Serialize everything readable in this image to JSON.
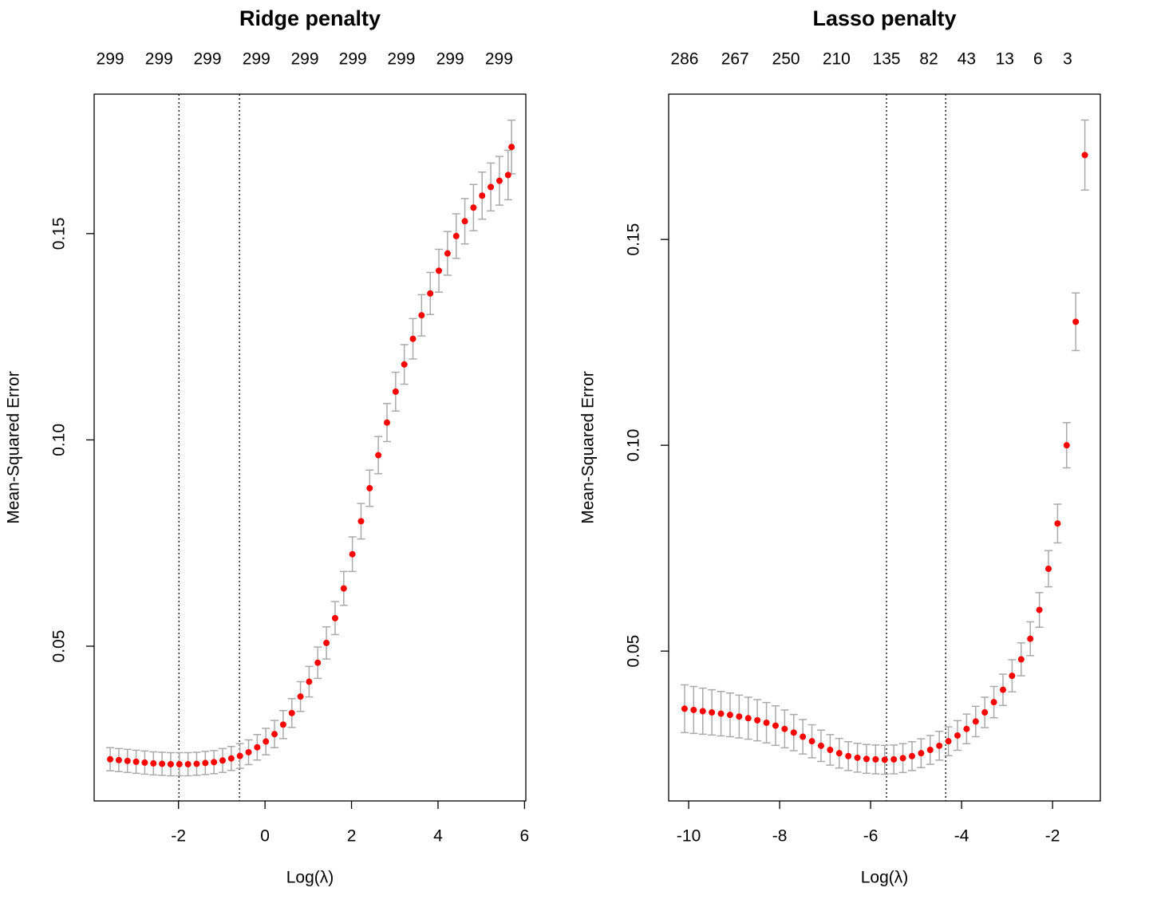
{
  "chart_data": [
    {
      "type": "errorbar",
      "title": "Ridge penalty",
      "xlabel": "Log(λ)",
      "ylabel": "Mean-Squared Error",
      "xlim": [
        -3.95,
        6.03
      ],
      "ylim": [
        0.0125,
        0.1838
      ],
      "xticks": [
        -2,
        0,
        2,
        4,
        6
      ],
      "yticks": [
        0.05,
        {
          "value": 0.1,
          "label": "0.10"
        },
        0.15
      ],
      "x2ticks": [
        {
          "value": -3.58,
          "label": "299"
        },
        {
          "value": -2.45,
          "label": "299"
        },
        {
          "value": -1.33,
          "label": "299"
        },
        {
          "value": -0.2,
          "label": "299"
        },
        {
          "value": 0.92,
          "label": "299"
        },
        {
          "value": 2.03,
          "label": "299"
        },
        {
          "value": 3.15,
          "label": "299"
        },
        {
          "value": 4.28,
          "label": "299"
        },
        {
          "value": 5.41,
          "label": "299"
        }
      ],
      "vlines": [
        -1.99,
        -0.59
      ],
      "color": "#ff0000",
      "error_color": "#aaaaaa",
      "x": [
        -3.58,
        -3.38,
        -3.18,
        -2.98,
        -2.78,
        -2.58,
        -2.38,
        -2.18,
        -1.98,
        -1.78,
        -1.58,
        -1.38,
        -1.18,
        -0.98,
        -0.78,
        -0.58,
        -0.38,
        -0.18,
        0.02,
        0.22,
        0.42,
        0.62,
        0.82,
        1.02,
        1.22,
        1.42,
        1.62,
        1.82,
        2.02,
        2.22,
        2.42,
        2.62,
        2.82,
        3.02,
        3.22,
        3.42,
        3.62,
        3.82,
        4.02,
        4.22,
        4.42,
        4.62,
        4.82,
        5.02,
        5.22,
        5.42,
        5.62,
        5.7
      ],
      "values": [
        0.0226,
        0.0224,
        0.0222,
        0.022,
        0.0218,
        0.0216,
        0.0215,
        0.0214,
        0.0214,
        0.0214,
        0.0215,
        0.0217,
        0.0219,
        0.0223,
        0.0228,
        0.0234,
        0.0243,
        0.0255,
        0.0269,
        0.0287,
        0.031,
        0.0338,
        0.0378,
        0.0414,
        0.046,
        0.0508,
        0.0568,
        0.064,
        0.0723,
        0.0803,
        0.0883,
        0.0963,
        0.1042,
        0.1117,
        0.1183,
        0.1245,
        0.1302,
        0.1355,
        0.141,
        0.1452,
        0.1494,
        0.153,
        0.1563,
        0.1592,
        0.1613,
        0.1628,
        0.1642,
        0.171
      ],
      "errors": [
        0.0028,
        0.0028,
        0.0028,
        0.0028,
        0.0028,
        0.0028,
        0.0028,
        0.0028,
        0.0028,
        0.0028,
        0.0028,
        0.0028,
        0.0028,
        0.0029,
        0.0029,
        0.003,
        0.003,
        0.0031,
        0.0032,
        0.0033,
        0.0034,
        0.0035,
        0.0036,
        0.0037,
        0.0038,
        0.0039,
        0.004,
        0.0041,
        0.0042,
        0.0043,
        0.0044,
        0.0045,
        0.0046,
        0.0047,
        0.0048,
        0.0049,
        0.005,
        0.0051,
        0.0052,
        0.0053,
        0.0054,
        0.0055,
        0.0056,
        0.0057,
        0.0058,
        0.0059,
        0.006,
        0.0065
      ]
    },
    {
      "type": "errorbar",
      "title": "Lasso penalty",
      "xlabel": "Log(λ)",
      "ylabel": "Mean-Squared Error",
      "xlim": [
        -10.44,
        -0.95
      ],
      "ylim": [
        0.0136,
        0.1853
      ],
      "xticks": [
        -10,
        -8,
        -6,
        -4,
        -2
      ],
      "yticks": [
        0.05,
        {
          "value": 0.1,
          "label": "0.10"
        },
        0.15
      ],
      "x2ticks": [
        {
          "value": -10.09,
          "label": "286"
        },
        {
          "value": -8.98,
          "label": "267"
        },
        {
          "value": -7.86,
          "label": "250"
        },
        {
          "value": -6.75,
          "label": "210"
        },
        {
          "value": -5.65,
          "label": "135"
        },
        {
          "value": -4.72,
          "label": "82"
        },
        {
          "value": -3.89,
          "label": "43"
        },
        {
          "value": -3.05,
          "label": "13"
        },
        {
          "value": -2.32,
          "label": "6"
        },
        {
          "value": -1.67,
          "label": "3"
        }
      ],
      "vlines": [
        -5.65,
        -4.35
      ],
      "color": "#ff0000",
      "error_color": "#aaaaaa",
      "x": [
        -10.09,
        -9.89,
        -9.69,
        -9.49,
        -9.29,
        -9.09,
        -8.89,
        -8.69,
        -8.49,
        -8.29,
        -8.09,
        -7.89,
        -7.69,
        -7.49,
        -7.29,
        -7.09,
        -6.89,
        -6.69,
        -6.49,
        -6.29,
        -6.09,
        -5.89,
        -5.69,
        -5.49,
        -5.29,
        -5.09,
        -4.89,
        -4.69,
        -4.49,
        -4.29,
        -4.09,
        -3.89,
        -3.69,
        -3.49,
        -3.29,
        -3.09,
        -2.89,
        -2.69,
        -2.49,
        -2.29,
        -2.09,
        -1.89,
        -1.69,
        -1.49,
        -1.29
      ],
      "values": [
        0.036,
        0.0357,
        0.0354,
        0.0351,
        0.0348,
        0.0345,
        0.0341,
        0.0337,
        0.0332,
        0.0326,
        0.0319,
        0.0311,
        0.0302,
        0.0292,
        0.0281,
        0.027,
        0.026,
        0.0252,
        0.0245,
        0.0241,
        0.0238,
        0.0237,
        0.0236,
        0.0237,
        0.024,
        0.0245,
        0.0252,
        0.026,
        0.027,
        0.0281,
        0.0295,
        0.0311,
        0.0329,
        0.0351,
        0.0376,
        0.0406,
        0.044,
        0.048,
        0.053,
        0.06,
        0.07,
        0.081,
        0.1,
        0.13,
        0.1705
      ],
      "errors": [
        0.0058,
        0.0057,
        0.0056,
        0.0055,
        0.0054,
        0.0053,
        0.0052,
        0.0051,
        0.005,
        0.0049,
        0.0048,
        0.0046,
        0.0044,
        0.0042,
        0.004,
        0.0038,
        0.0037,
        0.0036,
        0.0035,
        0.0035,
        0.0035,
        0.0035,
        0.0035,
        0.0035,
        0.0035,
        0.0035,
        0.0035,
        0.0035,
        0.0035,
        0.0035,
        0.0036,
        0.0036,
        0.0037,
        0.0037,
        0.0038,
        0.0038,
        0.0039,
        0.004,
        0.0041,
        0.0042,
        0.0044,
        0.0047,
        0.0055,
        0.007,
        0.0085
      ]
    }
  ]
}
